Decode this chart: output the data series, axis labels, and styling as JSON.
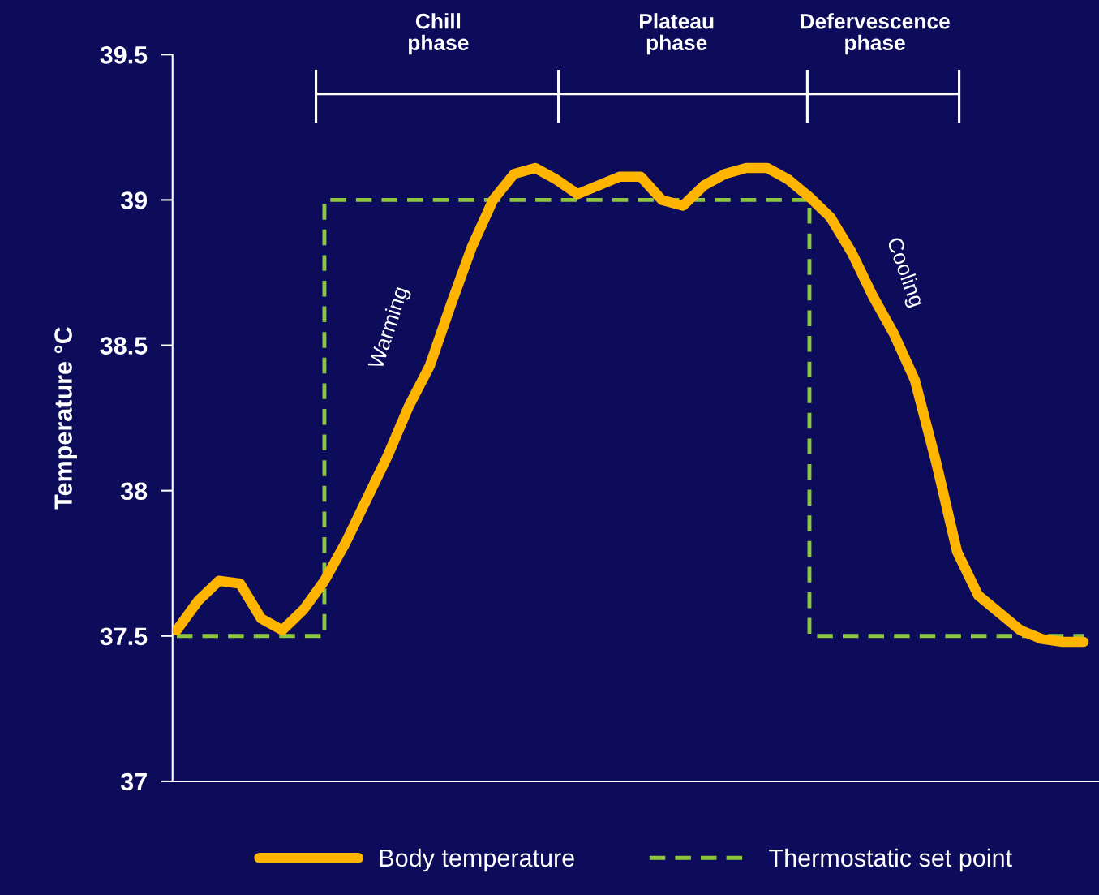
{
  "chart_data": {
    "type": "line",
    "ylabel": "Temperature °C",
    "categories": [
      null,
      null,
      null,
      null,
      null,
      null,
      null,
      null,
      null,
      null,
      null,
      null,
      null,
      null,
      null,
      null,
      null,
      null,
      null,
      null,
      null,
      null,
      null,
      null,
      null,
      null,
      null,
      null,
      null,
      null,
      null,
      null,
      null,
      null,
      null,
      null,
      null,
      null,
      null,
      null,
      null,
      null,
      null,
      null
    ],
    "series": [
      {
        "name": "Body temperature",
        "type": "line",
        "color": "#ffb400",
        "line_style": "solid",
        "values": [
          37.52,
          37.62,
          37.69,
          37.68,
          37.56,
          37.52,
          37.59,
          37.69,
          37.82,
          37.97,
          38.12,
          38.29,
          38.43,
          38.64,
          38.84,
          39.0,
          39.09,
          39.11,
          39.07,
          39.02,
          39.05,
          39.08,
          39.08,
          39.0,
          38.98,
          39.05,
          39.09,
          39.11,
          39.11,
          39.07,
          39.01,
          38.94,
          38.82,
          38.67,
          38.54,
          38.38,
          38.1,
          37.79,
          37.64,
          37.58,
          37.52,
          37.49,
          37.48,
          37.48
        ]
      },
      {
        "name": "Thermostatic set point",
        "type": "step",
        "color": "#8dc63f",
        "line_style": "dashed",
        "values": [
          37.5,
          37.5,
          37.5,
          37.5,
          37.5,
          37.5,
          37.5,
          39,
          39,
          39,
          39,
          39,
          39,
          39,
          39,
          39,
          39,
          39,
          39,
          39,
          39,
          39,
          39,
          39,
          39,
          39,
          39,
          39,
          39,
          39,
          37.5,
          37.5,
          37.5,
          37.5,
          37.5,
          37.5,
          37.5,
          37.5,
          37.5,
          37.5,
          37.5,
          37.5,
          37.5,
          37.5
        ]
      }
    ],
    "ylim": [
      37,
      39.5
    ],
    "yticks": [
      37,
      37.5,
      38,
      38.5,
      39,
      39.5
    ],
    "tick_labels": "y",
    "grid": false,
    "legend": "bottom",
    "annotations": [
      "Chill\nphase",
      "Plateau\nphase",
      "Defervescence\nphase",
      "Warming",
      "Cooling"
    ]
  }
}
